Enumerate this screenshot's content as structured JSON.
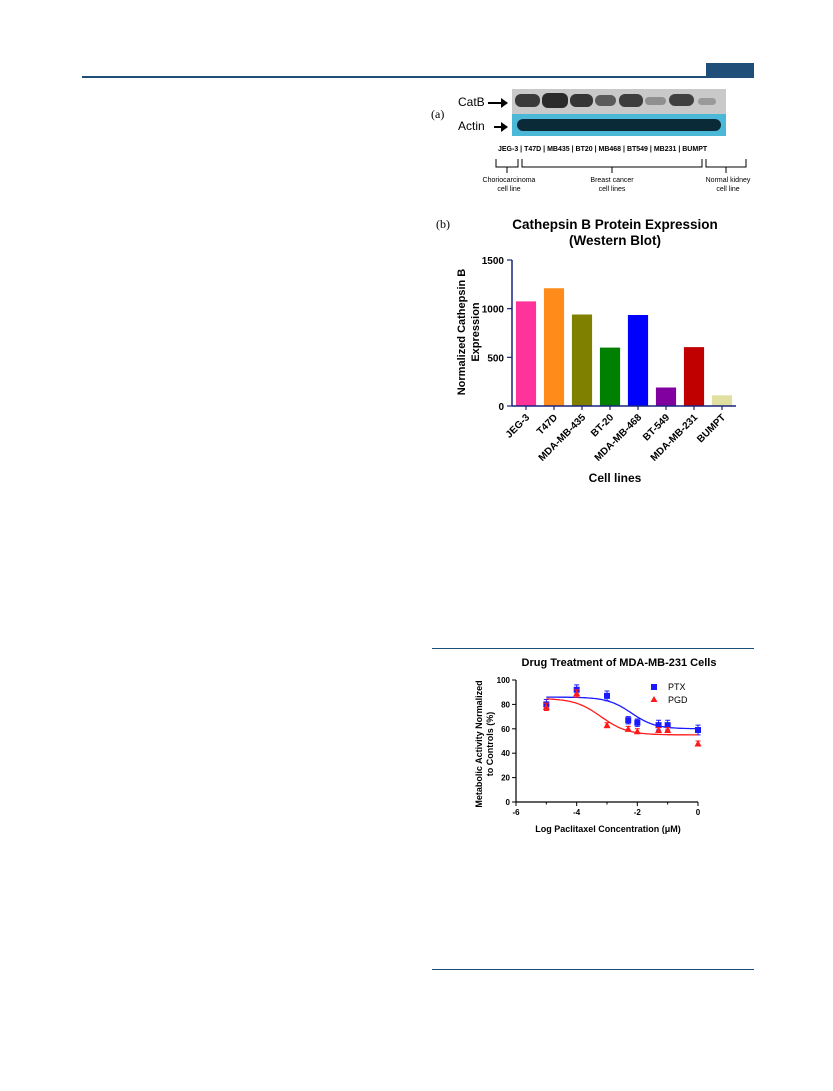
{
  "panel_a": {
    "letter": "(a)",
    "band_labels": [
      "CatB",
      "Actin"
    ],
    "lanes": [
      "JEG-3",
      "T47D",
      "MB435",
      "BT20",
      "MB468",
      "BT549",
      "MB231",
      "BUMPT"
    ],
    "groups": [
      {
        "line1": "Choriocarcinoma",
        "line2": "cell line"
      },
      {
        "line1": "Breast cancer",
        "line2": "cell lines"
      },
      {
        "line1": "Normal kidney",
        "line2": "cell line"
      }
    ]
  },
  "panel_b": {
    "letter": "(b)"
  },
  "chart_data": [
    {
      "type": "bar",
      "title": "Cathepsin  B Protein  Expression",
      "subtitle": "(Western Blot)",
      "xlabel": "Cell lines",
      "ylabel_line1": "Normalized Cathepsin B",
      "ylabel_line2": "Expression",
      "categories": [
        "JEG-3",
        "T47D",
        "MDA-MB-435",
        "BT-20",
        "MDA-MB-468",
        "BT-549",
        "MDA-MB-231",
        "BUMPT"
      ],
      "values": [
        1075,
        1210,
        940,
        600,
        935,
        190,
        605,
        110
      ],
      "colors": [
        "#ff3399",
        "#ff8c1a",
        "#808000",
        "#008000",
        "#0000ff",
        "#8000a0",
        "#c00000",
        "#e0e0a0"
      ],
      "ylim": [
        0,
        1500
      ],
      "yticks": [
        "0",
        "500",
        "1000",
        "1500"
      ]
    },
    {
      "type": "scatter",
      "title": "Drug Treatment of MDA-MB-231 Cells",
      "xlabel": "Log Paclitaxel Concentration (μM)",
      "ylabel_line1": "Metabolic Activity Normalized",
      "ylabel_line2": "to Controls (%)",
      "xlim": [
        -6,
        0
      ],
      "ylim": [
        0,
        100
      ],
      "xticks": [
        "-6",
        "-4",
        "-2",
        "0"
      ],
      "yticks": [
        "0",
        "20",
        "40",
        "60",
        "80",
        "100"
      ],
      "legend_position": "top-right",
      "series": [
        {
          "name": "PTX",
          "color": "#1a1aff",
          "marker": "square",
          "points": [
            {
              "x": -5,
              "y": 80,
              "err": 4
            },
            {
              "x": -4,
              "y": 92,
              "err": 4
            },
            {
              "x": -3,
              "y": 87,
              "err": 4
            },
            {
              "x": -2.3,
              "y": 67,
              "err": 3
            },
            {
              "x": -2,
              "y": 65,
              "err": 3
            },
            {
              "x": -1.3,
              "y": 63,
              "err": 4
            },
            {
              "x": -1,
              "y": 63,
              "err": 4
            },
            {
              "x": 0,
              "y": 59,
              "err": 4
            }
          ],
          "fit": {
            "top": 86,
            "bottom": 60,
            "logIC50": -2.2,
            "hill": 1.1
          }
        },
        {
          "name": "PGD",
          "color": "#ff1a1a",
          "marker": "triangle",
          "points": [
            {
              "x": -5,
              "y": 78,
              "err": 3
            },
            {
              "x": -4,
              "y": 89,
              "err": 3
            },
            {
              "x": -3,
              "y": 63,
              "err": 2
            },
            {
              "x": -2.3,
              "y": 60,
              "err": 2
            },
            {
              "x": -2,
              "y": 58,
              "err": 2
            },
            {
              "x": -1.3,
              "y": 59,
              "err": 2
            },
            {
              "x": -1,
              "y": 59,
              "err": 2
            },
            {
              "x": 0,
              "y": 48,
              "err": 2
            }
          ],
          "fit": {
            "top": 85,
            "bottom": 55,
            "logIC50": -3.2,
            "hill": 1.0
          }
        }
      ]
    }
  ]
}
